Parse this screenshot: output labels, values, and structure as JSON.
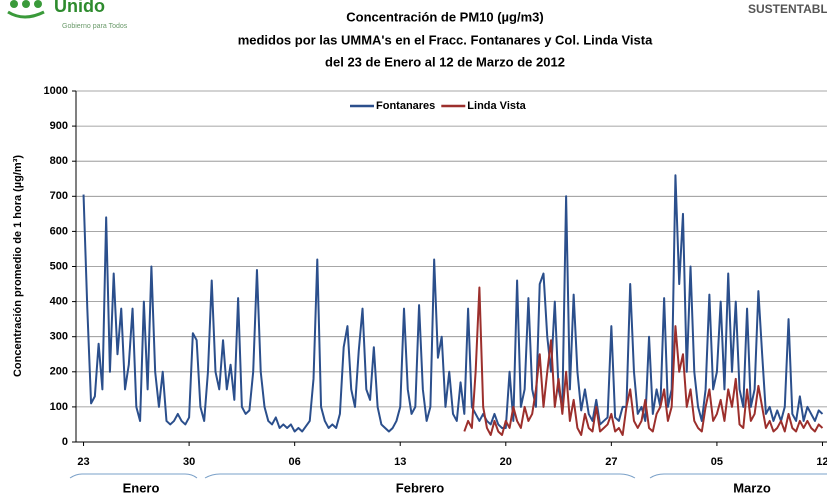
{
  "header": {
    "brand": "Unido",
    "slogan": "Gobierno para Todos",
    "section": "SUSTENTABL"
  },
  "chart_data": {
    "type": "line",
    "title": [
      "Concentración de PM10 (µg/m3)",
      "medidos por las UMMA's en el Fracc. Fontanares y Col. Linda Vista",
      "del 23 de Enero al 12 de Marzo de 2012"
    ],
    "y_label": "Concentración promedio de 1 hora  (µg/m³)",
    "annotations": [
      "Enero",
      "Febrero",
      "Marzo"
    ],
    "legend": "top",
    "grid": true,
    "xlim": [
      -0.5,
      49.3
    ],
    "xticks": [
      {
        "value": 0,
        "label": "23"
      },
      {
        "value": 7,
        "label": "30"
      },
      {
        "value": 14,
        "label": "06"
      },
      {
        "value": 21,
        "label": "13"
      },
      {
        "value": 28,
        "label": "20"
      },
      {
        "value": 35,
        "label": "27"
      },
      {
        "value": 42,
        "label": "05"
      },
      {
        "value": 49,
        "label": "12"
      }
    ],
    "ylim": [
      0,
      1000
    ],
    "yticks": [
      0,
      100,
      200,
      300,
      400,
      500,
      600,
      700,
      800,
      900,
      1000
    ],
    "x": [
      0,
      0.25,
      0.5,
      0.75,
      1,
      1.25,
      1.5,
      1.75,
      2,
      2.25,
      2.5,
      2.75,
      3,
      3.25,
      3.5,
      3.75,
      4,
      4.25,
      4.5,
      4.75,
      5,
      5.25,
      5.5,
      5.75,
      6,
      6.25,
      6.5,
      6.75,
      7,
      7.25,
      7.5,
      7.75,
      8,
      8.25,
      8.5,
      8.75,
      9,
      9.25,
      9.5,
      9.75,
      10,
      10.25,
      10.5,
      10.75,
      11,
      11.25,
      11.5,
      11.75,
      12,
      12.25,
      12.5,
      12.75,
      13,
      13.25,
      13.5,
      13.75,
      14,
      14.25,
      14.5,
      14.75,
      15,
      15.25,
      15.5,
      15.75,
      16,
      16.25,
      16.5,
      16.75,
      17,
      17.25,
      17.5,
      17.75,
      18,
      18.25,
      18.5,
      18.75,
      19,
      19.25,
      19.5,
      19.75,
      20,
      20.25,
      20.5,
      20.75,
      21,
      21.25,
      21.5,
      21.75,
      22,
      22.25,
      22.5,
      22.75,
      23,
      23.25,
      23.5,
      23.75,
      24,
      24.25,
      24.5,
      24.75,
      25,
      25.25,
      25.5,
      25.75,
      26,
      26.25,
      26.5,
      26.75,
      27,
      27.25,
      27.5,
      27.75,
      28,
      28.25,
      28.5,
      28.75,
      29,
      29.25,
      29.5,
      29.75,
      30,
      30.25,
      30.5,
      30.75,
      31,
      31.25,
      31.5,
      31.75,
      32,
      32.25,
      32.5,
      32.75,
      33,
      33.25,
      33.5,
      33.75,
      34,
      34.25,
      34.5,
      34.75,
      35,
      35.25,
      35.5,
      35.75,
      36,
      36.25,
      36.5,
      36.75,
      37,
      37.25,
      37.5,
      37.75,
      38,
      38.25,
      38.5,
      38.75,
      39,
      39.25,
      39.5,
      39.75,
      40,
      40.25,
      40.5,
      40.75,
      41,
      41.25,
      41.5,
      41.75,
      42,
      42.25,
      42.5,
      42.75,
      43,
      43.25,
      43.5,
      43.75,
      44,
      44.25,
      44.5,
      44.75,
      45,
      45.25,
      45.5,
      45.75,
      46,
      46.25,
      46.5,
      46.75,
      47,
      47.25,
      47.5,
      47.75,
      48,
      48.25,
      48.5,
      48.75,
      49
    ],
    "series": [
      {
        "name": "Fontanares",
        "color": "#2b4f8c",
        "values": [
          705,
          380,
          110,
          130,
          280,
          150,
          640,
          200,
          480,
          250,
          380,
          150,
          220,
          380,
          100,
          60,
          400,
          150,
          500,
          200,
          100,
          200,
          60,
          50,
          60,
          80,
          60,
          50,
          70,
          310,
          290,
          100,
          60,
          200,
          460,
          200,
          150,
          290,
          150,
          220,
          120,
          410,
          100,
          80,
          90,
          200,
          490,
          200,
          100,
          60,
          50,
          70,
          40,
          50,
          40,
          50,
          30,
          40,
          30,
          45,
          60,
          180,
          520,
          100,
          60,
          40,
          50,
          40,
          80,
          270,
          330,
          150,
          100,
          260,
          380,
          150,
          120,
          270,
          100,
          50,
          40,
          30,
          40,
          60,
          100,
          380,
          150,
          80,
          100,
          390,
          150,
          60,
          100,
          520,
          240,
          300,
          100,
          200,
          80,
          60,
          170,
          80,
          380,
          100,
          80,
          60,
          80,
          60,
          50,
          80,
          50,
          40,
          40,
          200,
          60,
          460,
          100,
          150,
          410,
          150,
          100,
          450,
          480,
          300,
          200,
          400,
          150,
          100,
          700,
          150,
          420,
          200,
          90,
          150,
          80,
          60,
          120,
          50,
          60,
          70,
          330,
          70,
          60,
          100,
          100,
          450,
          200,
          80,
          100,
          60,
          300,
          80,
          150,
          100,
          410,
          100,
          150,
          760,
          450,
          650,
          200,
          500,
          200,
          100,
          60,
          150,
          420,
          150,
          200,
          400,
          150,
          480,
          200,
          400,
          150,
          100,
          380,
          100,
          150,
          430,
          250,
          80,
          100,
          60,
          90,
          60,
          100,
          350,
          80,
          60,
          130,
          60,
          100,
          80,
          60,
          90,
          80
        ]
      },
      {
        "name": "Linda Vista",
        "color": "#9c2f2c",
        "values": [
          null,
          null,
          null,
          null,
          null,
          null,
          null,
          null,
          null,
          null,
          null,
          null,
          null,
          null,
          null,
          null,
          null,
          null,
          null,
          null,
          null,
          null,
          null,
          null,
          null,
          null,
          null,
          null,
          null,
          null,
          null,
          null,
          null,
          null,
          null,
          null,
          null,
          null,
          null,
          null,
          null,
          null,
          null,
          null,
          null,
          null,
          null,
          null,
          null,
          null,
          null,
          null,
          null,
          null,
          null,
          null,
          null,
          null,
          null,
          null,
          null,
          null,
          null,
          null,
          null,
          null,
          null,
          null,
          null,
          null,
          null,
          null,
          null,
          null,
          null,
          null,
          null,
          null,
          null,
          null,
          null,
          null,
          null,
          null,
          null,
          null,
          null,
          null,
          null,
          null,
          null,
          null,
          null,
          null,
          null,
          null,
          null,
          null,
          null,
          null,
          null,
          30,
          60,
          40,
          200,
          440,
          100,
          40,
          20,
          60,
          30,
          20,
          60,
          40,
          100,
          60,
          40,
          100,
          60,
          80,
          150,
          250,
          100,
          200,
          290,
          100,
          180,
          80,
          200,
          60,
          120,
          40,
          20,
          80,
          40,
          30,
          100,
          30,
          40,
          50,
          80,
          30,
          40,
          20,
          100,
          150,
          60,
          40,
          60,
          120,
          40,
          30,
          80,
          100,
          150,
          60,
          100,
          330,
          200,
          250,
          100,
          150,
          60,
          40,
          30,
          100,
          150,
          60,
          80,
          120,
          60,
          150,
          100,
          180,
          50,
          40,
          150,
          60,
          80,
          160,
          100,
          40,
          60,
          30,
          40,
          60,
          30,
          80,
          40,
          30,
          60,
          40,
          60,
          40,
          30,
          50,
          40
        ]
      }
    ]
  }
}
